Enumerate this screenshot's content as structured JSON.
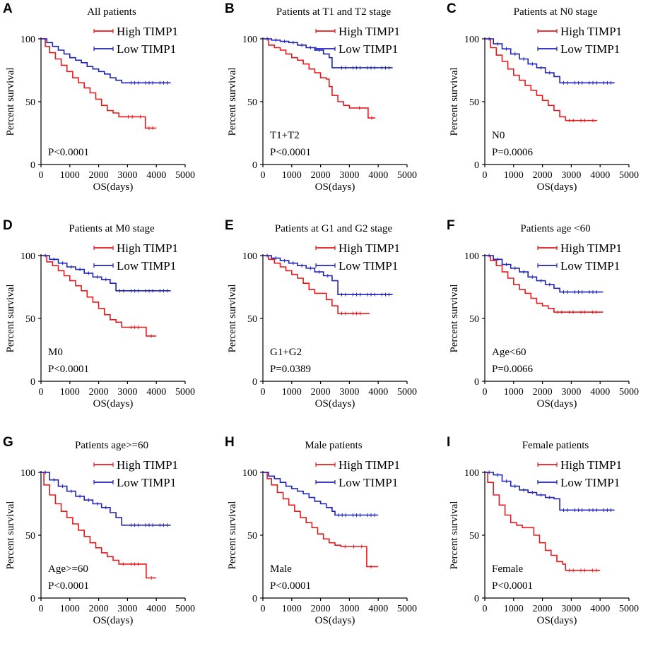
{
  "figure": {
    "colors": {
      "high": "#e8191c",
      "low": "#1e22b8",
      "axis": "#000000"
    },
    "ylabel": "Percent survival",
    "xlabel": "OS(days)",
    "yticks": [
      "0",
      "50",
      "100"
    ],
    "xticks": [
      "0",
      "1000",
      "2000",
      "3000",
      "4000",
      "5000"
    ]
  },
  "chart_data": [
    {
      "type": "line",
      "letter": "A",
      "title": "All patients",
      "xlabel": "OS(days)",
      "ylabel": "Percent survival",
      "xlim": [
        0,
        5000
      ],
      "ylim": [
        0,
        100
      ],
      "legend": [
        "High TIMP1",
        "Low TIMP1"
      ],
      "annotation": "",
      "pvalue": "P<0.0001",
      "series": [
        {
          "name": "High TIMP1",
          "x": [
            0,
            150,
            300,
            500,
            700,
            900,
            1100,
            1300,
            1500,
            1700,
            1900,
            2100,
            2300,
            2500,
            2700,
            2900,
            3300,
            3600,
            3620,
            4000
          ],
          "y": [
            100,
            94,
            89,
            84,
            79,
            74,
            69,
            65,
            61,
            57,
            52,
            47,
            43,
            41,
            38,
            38,
            38,
            38,
            29,
            29
          ]
        },
        {
          "name": "Low TIMP1",
          "x": [
            0,
            200,
            400,
            600,
            800,
            1000,
            1200,
            1400,
            1600,
            1800,
            2000,
            2200,
            2400,
            2600,
            2800,
            3000,
            3500,
            4000,
            4500
          ],
          "y": [
            100,
            97,
            94,
            91,
            88,
            85,
            83,
            81,
            78,
            76,
            74,
            72,
            69,
            67,
            65,
            65,
            65,
            65,
            65
          ]
        }
      ]
    },
    {
      "type": "line",
      "letter": "B",
      "title": "Patients at T1 and T2 stage",
      "xlabel": "OS(days)",
      "ylabel": "Percent survival",
      "xlim": [
        0,
        5000
      ],
      "ylim": [
        0,
        100
      ],
      "legend": [
        "High TIMP1",
        "Low TIMP1"
      ],
      "annotation": "T1+T2",
      "pvalue": "P<0.0001",
      "series": [
        {
          "name": "High TIMP1",
          "x": [
            0,
            200,
            400,
            600,
            800,
            1000,
            1200,
            1400,
            1600,
            1800,
            2000,
            2200,
            2300,
            2400,
            2600,
            2800,
            3000,
            3200,
            3500,
            3650,
            3900
          ],
          "y": [
            100,
            95,
            93,
            91,
            88,
            85,
            83,
            80,
            76,
            73,
            69,
            68,
            62,
            55,
            50,
            47,
            45,
            45,
            45,
            37,
            37
          ]
        },
        {
          "name": "Low TIMP1",
          "x": [
            0,
            300,
            600,
            900,
            1200,
            1500,
            1800,
            2100,
            2300,
            2400,
            2600,
            3000,
            3500,
            4000,
            4500
          ],
          "y": [
            100,
            99,
            98,
            97,
            95,
            93,
            91,
            88,
            85,
            77,
            77,
            77,
            77,
            77,
            77
          ]
        }
      ]
    },
    {
      "type": "line",
      "letter": "C",
      "title": "Patients at N0 stage",
      "xlabel": "OS(days)",
      "ylabel": "Percent survival",
      "xlim": [
        0,
        5000
      ],
      "ylim": [
        0,
        100
      ],
      "legend": [
        "High TIMP1",
        "Low TIMP1"
      ],
      "annotation": "N0",
      "pvalue": "P=0.0006",
      "series": [
        {
          "name": "High TIMP1",
          "x": [
            0,
            200,
            400,
            600,
            800,
            1000,
            1200,
            1400,
            1600,
            1800,
            2000,
            2200,
            2400,
            2600,
            2800,
            3200,
            3600,
            3900
          ],
          "y": [
            100,
            93,
            87,
            82,
            76,
            71,
            67,
            63,
            59,
            55,
            51,
            47,
            43,
            38,
            35,
            35,
            35,
            35
          ]
        },
        {
          "name": "Low TIMP1",
          "x": [
            0,
            300,
            600,
            900,
            1200,
            1500,
            1800,
            2100,
            2400,
            2600,
            3000,
            3500,
            4000,
            4500
          ],
          "y": [
            100,
            96,
            92,
            88,
            84,
            80,
            77,
            73,
            70,
            65,
            65,
            65,
            65,
            65
          ]
        }
      ]
    },
    {
      "type": "line",
      "letter": "D",
      "title": "Patients at M0 stage",
      "xlabel": "OS(days)",
      "ylabel": "Percent survival",
      "xlim": [
        0,
        5000
      ],
      "ylim": [
        0,
        100
      ],
      "legend": [
        "High TIMP1",
        "Low TIMP1"
      ],
      "annotation": "M0",
      "pvalue": "P<0.0001",
      "series": [
        {
          "name": "High TIMP1",
          "x": [
            0,
            200,
            400,
            600,
            800,
            1000,
            1200,
            1400,
            1600,
            1800,
            2000,
            2200,
            2400,
            2600,
            2800,
            3000,
            3500,
            3650,
            4000
          ],
          "y": [
            100,
            95,
            92,
            88,
            84,
            80,
            76,
            72,
            67,
            63,
            58,
            53,
            49,
            47,
            43,
            43,
            43,
            36,
            36
          ]
        },
        {
          "name": "Low TIMP1",
          "x": [
            0,
            300,
            600,
            900,
            1200,
            1500,
            1800,
            2100,
            2400,
            2600,
            3000,
            3500,
            4000,
            4500
          ],
          "y": [
            100,
            97,
            94,
            91,
            89,
            86,
            83,
            81,
            78,
            72,
            72,
            72,
            72,
            72
          ]
        }
      ]
    },
    {
      "type": "line",
      "letter": "E",
      "title": "Patients at G1 and G2 stage",
      "xlabel": "OS(days)",
      "ylabel": "Percent survival",
      "xlim": [
        0,
        5000
      ],
      "ylim": [
        0,
        100
      ],
      "legend": [
        "High TIMP1",
        "Low TIMP1"
      ],
      "annotation": "G1+G2",
      "pvalue": "P=0.0389",
      "series": [
        {
          "name": "High TIMP1",
          "x": [
            0,
            200,
            400,
            600,
            800,
            1000,
            1200,
            1400,
            1600,
            1800,
            2000,
            2200,
            2400,
            2600,
            3000,
            3500,
            3700
          ],
          "y": [
            100,
            97,
            94,
            91,
            88,
            85,
            82,
            78,
            73,
            70,
            70,
            65,
            60,
            54,
            54,
            54,
            54
          ]
        },
        {
          "name": "Low TIMP1",
          "x": [
            0,
            300,
            600,
            900,
            1200,
            1500,
            1800,
            2100,
            2400,
            2600,
            3000,
            3500,
            4000,
            4500
          ],
          "y": [
            100,
            98,
            96,
            94,
            92,
            90,
            87,
            84,
            80,
            69,
            69,
            69,
            69,
            69
          ]
        }
      ]
    },
    {
      "type": "line",
      "letter": "F",
      "title": "Patients age <60",
      "xlabel": "OS(days)",
      "ylabel": "Percent survival",
      "xlim": [
        0,
        5000
      ],
      "ylim": [
        0,
        100
      ],
      "legend": [
        "High TIMP1",
        "Low TIMP1"
      ],
      "annotation": "Age<60",
      "pvalue": "P=0.0066",
      "series": [
        {
          "name": "High TIMP1",
          "x": [
            0,
            200,
            400,
            600,
            800,
            1000,
            1200,
            1400,
            1600,
            1800,
            2000,
            2200,
            2400,
            2800,
            3200,
            3600,
            4000,
            4100
          ],
          "y": [
            100,
            96,
            92,
            87,
            82,
            77,
            73,
            70,
            66,
            62,
            60,
            58,
            55,
            55,
            55,
            55,
            55,
            55
          ]
        },
        {
          "name": "Low TIMP1",
          "x": [
            0,
            300,
            600,
            900,
            1200,
            1500,
            1800,
            2100,
            2400,
            2600,
            3000,
            3500,
            4000,
            4100
          ],
          "y": [
            100,
            97,
            93,
            90,
            87,
            83,
            80,
            77,
            74,
            71,
            71,
            71,
            71,
            71
          ]
        }
      ]
    },
    {
      "type": "line",
      "letter": "G",
      "title": "Patients age>=60",
      "xlabel": "OS(days)",
      "ylabel": "Percent survival",
      "xlim": [
        0,
        5000
      ],
      "ylim": [
        0,
        100
      ],
      "legend": [
        "High TIMP1",
        "Low TIMP1"
      ],
      "annotation": "Age>=60",
      "pvalue": "P<0.0001",
      "series": [
        {
          "name": "High TIMP1",
          "x": [
            0,
            100,
            300,
            500,
            700,
            900,
            1100,
            1300,
            1500,
            1700,
            1900,
            2100,
            2300,
            2500,
            2700,
            3000,
            3500,
            3650,
            4000
          ],
          "y": [
            100,
            90,
            82,
            75,
            69,
            64,
            59,
            54,
            49,
            44,
            40,
            36,
            33,
            30,
            27,
            27,
            27,
            16,
            16
          ]
        },
        {
          "name": "Low TIMP1",
          "x": [
            0,
            300,
            600,
            900,
            1200,
            1500,
            1800,
            2100,
            2400,
            2600,
            2800,
            3000,
            3500,
            4000,
            4500
          ],
          "y": [
            100,
            94,
            89,
            85,
            81,
            78,
            75,
            72,
            68,
            64,
            58,
            58,
            58,
            58,
            58
          ]
        }
      ]
    },
    {
      "type": "line",
      "letter": "H",
      "title": "Male patients",
      "xlabel": "OS(days)",
      "ylabel": "Percent survival",
      "xlim": [
        0,
        5000
      ],
      "ylim": [
        0,
        100
      ],
      "legend": [
        "High TIMP1",
        "Low TIMP1"
      ],
      "annotation": "Male",
      "pvalue": "P<0.0001",
      "series": [
        {
          "name": "High TIMP1",
          "x": [
            0,
            150,
            300,
            500,
            700,
            900,
            1100,
            1300,
            1500,
            1700,
            1900,
            2100,
            2300,
            2500,
            2700,
            3000,
            3300,
            3550,
            3600,
            3900,
            4000
          ],
          "y": [
            100,
            95,
            90,
            84,
            79,
            74,
            69,
            64,
            60,
            56,
            51,
            47,
            44,
            42,
            41,
            41,
            41,
            41,
            25,
            25,
            25
          ]
        },
        {
          "name": "Low TIMP1",
          "x": [
            0,
            200,
            400,
            600,
            800,
            1000,
            1200,
            1400,
            1600,
            1800,
            2000,
            2200,
            2400,
            2500,
            3000,
            3500,
            4000
          ],
          "y": [
            100,
            97,
            95,
            92,
            89,
            87,
            85,
            83,
            80,
            77,
            75,
            72,
            69,
            66,
            66,
            66,
            66
          ]
        }
      ]
    },
    {
      "type": "line",
      "letter": "I",
      "title": "Female patients",
      "xlabel": "OS(days)",
      "ylabel": "Percent survival",
      "xlim": [
        0,
        5000
      ],
      "ylim": [
        0,
        100
      ],
      "legend": [
        "High TIMP1",
        "Low TIMP1"
      ],
      "annotation": "Female",
      "pvalue": "P<0.0001",
      "series": [
        {
          "name": "High TIMP1",
          "x": [
            0,
            100,
            300,
            500,
            700,
            900,
            1100,
            1300,
            1500,
            1700,
            1900,
            2100,
            2300,
            2500,
            2700,
            2800,
            3200,
            3600,
            4000
          ],
          "y": [
            100,
            92,
            82,
            74,
            66,
            60,
            58,
            56,
            56,
            50,
            44,
            38,
            34,
            29,
            27,
            22,
            22,
            22,
            22
          ]
        },
        {
          "name": "Low TIMP1",
          "x": [
            0,
            300,
            600,
            900,
            1200,
            1500,
            1800,
            2100,
            2400,
            2600,
            3000,
            3500,
            4000,
            4500
          ],
          "y": [
            100,
            98,
            93,
            89,
            86,
            84,
            82,
            80,
            79,
            70,
            70,
            70,
            70,
            70
          ]
        }
      ]
    }
  ]
}
